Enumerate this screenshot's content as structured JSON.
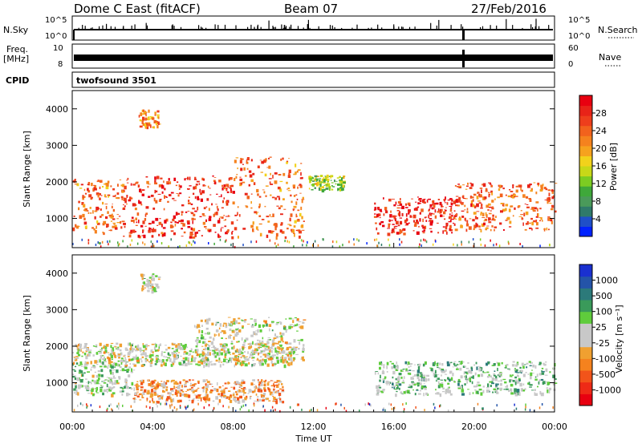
{
  "header": {
    "radar": "Dome C East (fitACF)",
    "beam": "Beam 07",
    "date": "27/Feb/2016"
  },
  "top_panels": {
    "nsky_label": "N.Sky",
    "nsky_ticks": [
      "10^5",
      "10^0"
    ],
    "nsearch_label": "N.Search",
    "nsearch_ticks": [
      "10^5",
      "10^0"
    ],
    "freq_label_1": "Freq.",
    "freq_label_2": "[MHz]",
    "freq_ticks": [
      "10",
      "8"
    ],
    "nave_label": "Nave",
    "nave_ticks": [
      "60",
      "0"
    ],
    "cpid_label": "CPID",
    "cpid_value": "twofsound 3501"
  },
  "axes": {
    "ylabel": "Slant Range [km]",
    "yticks": [
      "4000",
      "3000",
      "2000",
      "1000"
    ],
    "xlabel": "Time UT",
    "xticks": [
      "00:00",
      "04:00",
      "08:00",
      "12:00",
      "16:00",
      "20:00",
      "00:00"
    ]
  },
  "colorbars": {
    "power": {
      "label": "Power [dB]",
      "ticks": [
        "28",
        "24",
        "20",
        "16",
        "12",
        "8",
        "4"
      ],
      "colors": [
        "#0022ff",
        "#1f4fc8",
        "#2f7a6a",
        "#4a9a5a",
        "#3fa83a",
        "#7ccc22",
        "#c8d818",
        "#f2d21b",
        "#f6a21e",
        "#f5821e",
        "#f2621d",
        "#ee3e1c",
        "#e82318",
        "#e80010"
      ]
    },
    "velocity": {
      "label": "Velocity [m s⁻¹]",
      "ticks": [
        "1000",
        "500",
        "100",
        "25",
        "-25",
        "-100",
        "-500",
        "-1000"
      ],
      "colors": [
        "#e80010",
        "#ee2a16",
        "#f2541a",
        "#f5821e",
        "#f0a030",
        "#c8c8c8",
        "#c8c8c8",
        "#5fcc3c",
        "#3a9a5a",
        "#2c7a7a",
        "#2454a8",
        "#1a30d0"
      ]
    }
  },
  "chart_data": [
    {
      "type": "heatmap",
      "title": "Power",
      "xlabel": "Time UT",
      "ylabel": "Slant Range [km]",
      "xlim": [
        "00:00",
        "24:00"
      ],
      "ylim": [
        200,
        4500
      ],
      "color_quantity": "Power [dB]",
      "color_range": [
        0,
        30
      ],
      "regions": [
        {
          "t_start": 0.0,
          "t_end": 2.5,
          "range_low": 600,
          "range_high": 2100,
          "value": 22
        },
        {
          "t_start": 2.5,
          "t_end": 8.0,
          "range_low": 500,
          "range_high": 2200,
          "value": 26
        },
        {
          "t_start": 8.0,
          "t_end": 11.5,
          "range_low": 500,
          "range_high": 2700,
          "value": 22
        },
        {
          "t_start": 3.3,
          "t_end": 4.3,
          "range_low": 3500,
          "range_high": 4000,
          "value": 20
        },
        {
          "t_start": 11.7,
          "t_end": 13.5,
          "range_low": 1800,
          "range_high": 2200,
          "value": 12
        },
        {
          "t_start": 15.0,
          "t_end": 19.0,
          "range_low": 600,
          "range_high": 1600,
          "value": 27
        },
        {
          "t_start": 19.0,
          "t_end": 24.0,
          "range_low": 700,
          "range_high": 2000,
          "value": 23
        }
      ]
    },
    {
      "type": "heatmap",
      "title": "Velocity",
      "xlabel": "Time UT",
      "ylabel": "Slant Range [km]",
      "xlim": [
        "00:00",
        "24:00"
      ],
      "ylim": [
        200,
        4500
      ],
      "color_quantity": "Velocity [m s-1]",
      "color_range": [
        -1000,
        1000
      ],
      "regions": [
        {
          "t_start": 0.0,
          "t_end": 11.0,
          "range_low": 1500,
          "range_high": 2100,
          "value": 0
        },
        {
          "t_start": 0.0,
          "t_end": 3.0,
          "range_low": 700,
          "range_high": 1500,
          "value": 150
        },
        {
          "t_start": 3.0,
          "t_end": 10.5,
          "range_low": 500,
          "range_high": 1100,
          "value": -300
        },
        {
          "t_start": 6.0,
          "t_end": 11.5,
          "range_low": 1600,
          "range_high": 2800,
          "value": 0
        },
        {
          "t_start": 3.3,
          "t_end": 4.3,
          "range_low": 3500,
          "range_high": 4000,
          "value": 0
        },
        {
          "t_start": 15.0,
          "t_end": 24.0,
          "range_low": 700,
          "range_high": 1600,
          "value": 200
        }
      ]
    }
  ]
}
